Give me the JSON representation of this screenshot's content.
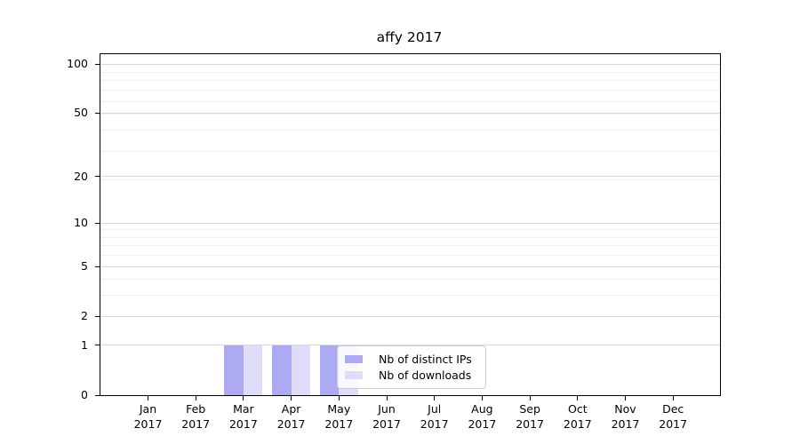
{
  "chart_data": {
    "type": "bar",
    "title": "affy 2017",
    "categories": [
      "Jan 2017",
      "Feb 2017",
      "Mar 2017",
      "Apr 2017",
      "May 2017",
      "Jun 2017",
      "Jul 2017",
      "Aug 2017",
      "Sep 2017",
      "Oct 2017",
      "Nov 2017",
      "Dec 2017"
    ],
    "series": [
      {
        "name": "Nb of distinct IPs",
        "color": "#abaaf2",
        "values": [
          0,
          0,
          1,
          1,
          1,
          0,
          0,
          0,
          0,
          0,
          0,
          0
        ]
      },
      {
        "name": "Nb of downloads",
        "color": "#dedcf9",
        "values": [
          0,
          0,
          1,
          1,
          1,
          0,
          0,
          0,
          0,
          0,
          0,
          0
        ]
      }
    ],
    "y_axis": {
      "scale": "log1p",
      "ticks": [
        0,
        1,
        2,
        5,
        10,
        20,
        50,
        100
      ],
      "max_value": 115
    },
    "x_axis": {
      "tick_label_lines": 2
    },
    "grid": {
      "minor_shifted_steps": [
        4,
        5,
        7,
        8,
        9,
        10,
        20,
        30,
        40,
        50,
        60,
        70,
        80,
        90,
        100
      ],
      "minor_color": "#efefef",
      "major_color": "#d9d9d9"
    },
    "legend": {
      "position": "lower-center",
      "background": "rgba(255,255,255,0.8)",
      "border_color": "#cccccc"
    },
    "axis_color": "#000000",
    "plot_background": "#ffffff"
  }
}
